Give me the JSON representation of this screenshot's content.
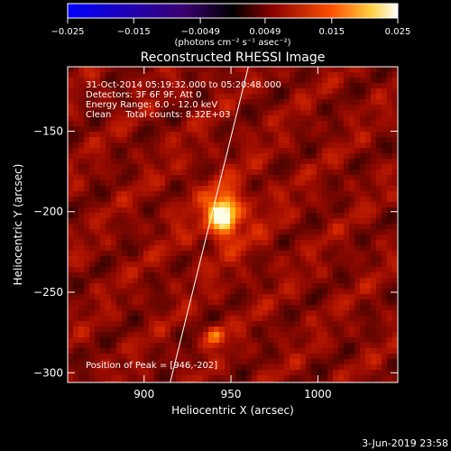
{
  "chart_data": {
    "type": "heatmap",
    "title": "Reconstructed RHESSI Image",
    "xlabel": "Heliocentric X (arcsec)",
    "ylabel": "Heliocentric Y (arcsec)",
    "xlim": [
      856,
      1046
    ],
    "ylim": [
      -306,
      -110
    ],
    "x_ticks": [
      {
        "value": 900,
        "label": "900"
      },
      {
        "value": 950,
        "label": "950"
      },
      {
        "value": 1000,
        "label": "1000"
      }
    ],
    "y_ticks": [
      {
        "value": -150,
        "label": "−150"
      },
      {
        "value": -200,
        "label": "−200"
      },
      {
        "value": -250,
        "label": "−250"
      },
      {
        "value": -300,
        "label": "−300"
      }
    ],
    "colorbar": {
      "min": -0.025,
      "max": 0.025,
      "ticks": [
        {
          "value": -0.025,
          "label": "−0.025"
        },
        {
          "value": -0.015,
          "label": "−0.015"
        },
        {
          "value": -0.0049,
          "label": "−0.0049"
        },
        {
          "value": 0.0049,
          "label": "0.0049"
        },
        {
          "value": 0.015,
          "label": "0.015"
        },
        {
          "value": 0.025,
          "label": "0.025"
        }
      ],
      "unit_label": "(photons cm⁻² s⁻¹ asec⁻²)"
    },
    "annotations": [
      "31-Oct-2014 05:19:32.000 to 05:20:48.000",
      "Detectors: 3F 6F 9F, Att 0",
      "Energy Range: 6.0 - 12.0 keV",
      "Clean     Total counts: 8.32E+03"
    ],
    "peak_label": "Position of Peak = [946,-202]",
    "peak": {
      "x": 946,
      "y": -202,
      "value": 0.025
    },
    "secondary_source": {
      "x": 941,
      "y": -277,
      "value": 0.014
    },
    "limb_line": [
      [
        915,
        -306
      ],
      [
        960,
        -110
      ]
    ],
    "timestamp": "3-Jun-2019 23:58"
  }
}
